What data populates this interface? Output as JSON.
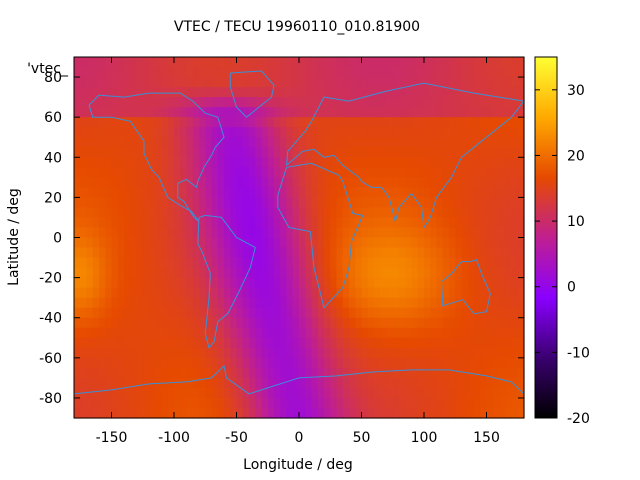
{
  "chart_data": {
    "type": "heatmap",
    "title": "VTEC / TECU 19960110_010.81900",
    "xlabel": "Longitude / deg",
    "ylabel": "Latitude / deg",
    "series_key": "'vtec_",
    "xlim": [
      -180,
      180
    ],
    "ylim": [
      -90,
      90
    ],
    "x_ticks": [
      -150,
      -100,
      -50,
      0,
      50,
      100,
      150
    ],
    "y_ticks": [
      -80,
      -60,
      -40,
      -20,
      0,
      20,
      40,
      60,
      80
    ],
    "colorbar": {
      "range": [
        -20,
        35
      ],
      "ticks": [
        -20,
        -10,
        0,
        10,
        20,
        30
      ],
      "palette": [
        "#000000",
        "#3a0070",
        "#8a00ff",
        "#c0208f",
        "#e64a00",
        "#ffaa00",
        "#ffff33"
      ]
    },
    "field": {
      "background_tecu": 16,
      "regions": [
        {
          "name": "american sector trough",
          "lon_center": -35,
          "lat_center": 0,
          "tecu": 2
        },
        {
          "name": "south polar trough",
          "lon_center": -10,
          "lat_center": -80,
          "tecu": 1
        },
        {
          "name": "indian ocean crest",
          "lon_center": 75,
          "lat_center": -20,
          "tecu": 21
        },
        {
          "name": "pacific crest",
          "lon_center": -175,
          "lat_center": -20,
          "tecu": 21
        }
      ]
    }
  },
  "colors": {
    "coastline": "#3a8fd8",
    "background": "#ffffff",
    "frame": "#000000"
  }
}
